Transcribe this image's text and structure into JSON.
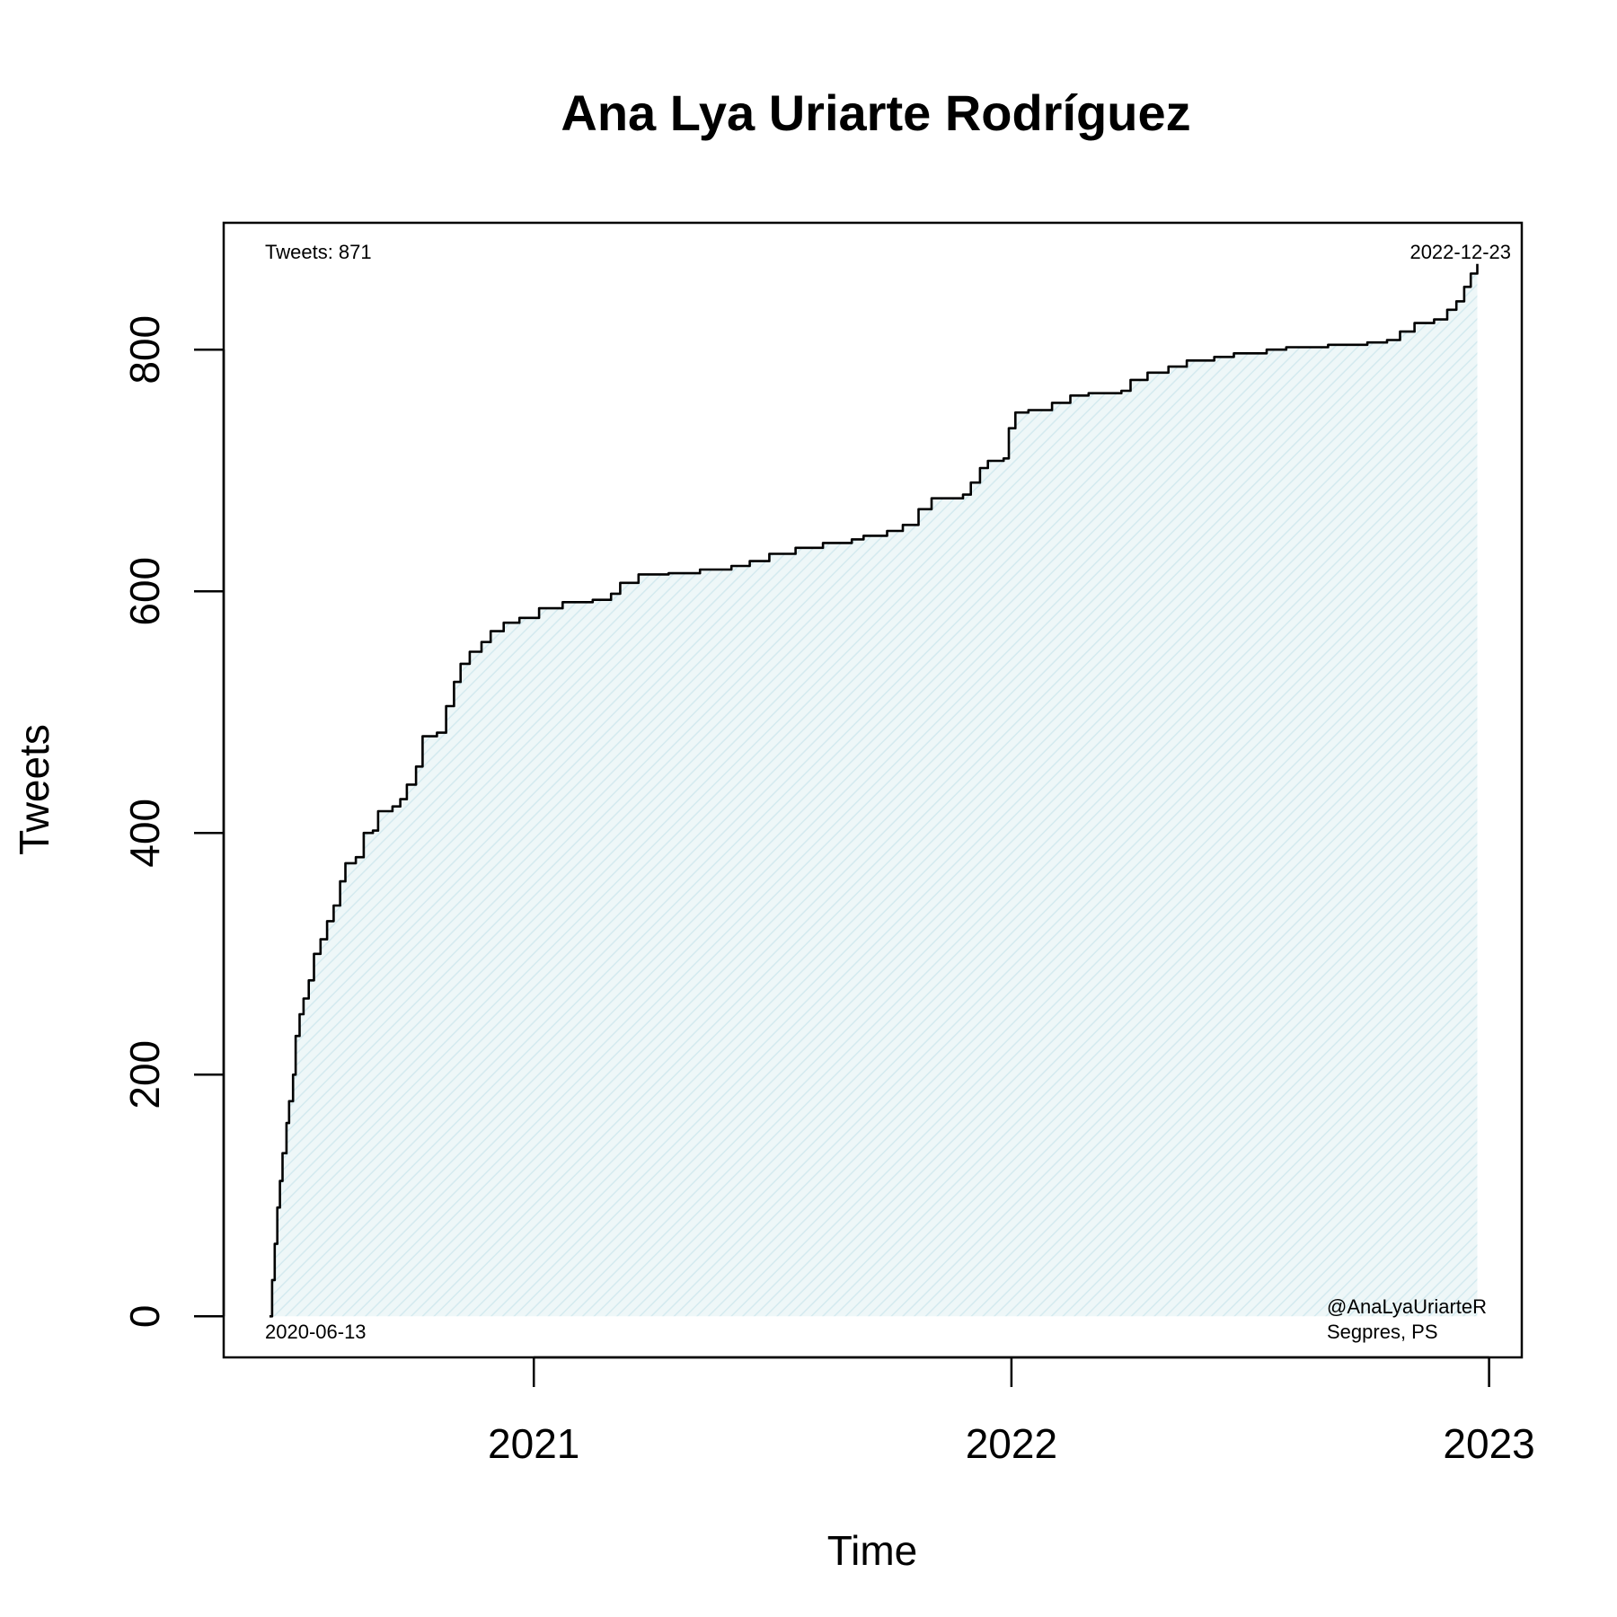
{
  "chart_data": {
    "type": "area",
    "title": "Ana Lya Uriarte Rodríguez",
    "xlabel": "Time",
    "ylabel": "Tweets",
    "xlim": [
      "2020-05-09",
      "2023-01-26"
    ],
    "ylim": [
      -34,
      905
    ],
    "x_ticks": [
      {
        "label": "2021",
        "date": "2021-01-01"
      },
      {
        "label": "2022",
        "date": "2022-01-01"
      },
      {
        "label": "2023",
        "date": "2023-01-01"
      }
    ],
    "y_ticks": [
      0,
      200,
      400,
      600,
      800
    ],
    "grid": false,
    "fill_color": "#e6f3f5",
    "line_color": "#000000",
    "annotations": {
      "count_label": "Tweets: 871",
      "end_date_label": "2022-12-23",
      "start_date_label": "2020-06-13",
      "handle": "@AnaLyaUriarteR",
      "affiliation": "Segpres, PS"
    },
    "series": [
      {
        "points": [
          [
            "2020-06-13",
            0
          ],
          [
            "2020-06-15",
            30
          ],
          [
            "2020-06-17",
            60
          ],
          [
            "2020-06-19",
            90
          ],
          [
            "2020-06-21",
            112
          ],
          [
            "2020-06-23",
            135
          ],
          [
            "2020-06-26",
            160
          ],
          [
            "2020-06-28",
            178
          ],
          [
            "2020-07-01",
            200
          ],
          [
            "2020-07-03",
            232
          ],
          [
            "2020-07-06",
            250
          ],
          [
            "2020-07-09",
            263
          ],
          [
            "2020-07-13",
            278
          ],
          [
            "2020-07-17",
            300
          ],
          [
            "2020-07-22",
            312
          ],
          [
            "2020-07-27",
            327
          ],
          [
            "2020-08-01",
            340
          ],
          [
            "2020-08-06",
            360
          ],
          [
            "2020-08-10",
            375
          ],
          [
            "2020-08-18",
            380
          ],
          [
            "2020-08-24",
            400
          ],
          [
            "2020-08-31",
            402
          ],
          [
            "2020-09-04",
            418
          ],
          [
            "2020-09-15",
            422
          ],
          [
            "2020-09-21",
            428
          ],
          [
            "2020-09-26",
            440
          ],
          [
            "2020-10-03",
            455
          ],
          [
            "2020-10-08",
            480
          ],
          [
            "2020-10-19",
            483
          ],
          [
            "2020-10-26",
            505
          ],
          [
            "2020-11-01",
            525
          ],
          [
            "2020-11-06",
            540
          ],
          [
            "2020-11-13",
            550
          ],
          [
            "2020-11-22",
            558
          ],
          [
            "2020-11-29",
            567
          ],
          [
            "2020-12-09",
            574
          ],
          [
            "2020-12-21",
            578
          ],
          [
            "2021-01-05",
            586
          ],
          [
            "2021-01-23",
            591
          ],
          [
            "2021-02-15",
            593
          ],
          [
            "2021-03-01",
            598
          ],
          [
            "2021-03-08",
            607
          ],
          [
            "2021-03-22",
            614
          ],
          [
            "2021-04-14",
            615
          ],
          [
            "2021-05-08",
            618
          ],
          [
            "2021-06-01",
            621
          ],
          [
            "2021-06-15",
            625
          ],
          [
            "2021-06-30",
            631
          ],
          [
            "2021-07-20",
            636
          ],
          [
            "2021-08-10",
            640
          ],
          [
            "2021-09-01",
            643
          ],
          [
            "2021-09-10",
            646
          ],
          [
            "2021-09-28",
            650
          ],
          [
            "2021-10-10",
            655
          ],
          [
            "2021-10-22",
            668
          ],
          [
            "2021-11-01",
            677
          ],
          [
            "2021-11-25",
            680
          ],
          [
            "2021-12-01",
            690
          ],
          [
            "2021-12-08",
            702
          ],
          [
            "2021-12-14",
            708
          ],
          [
            "2021-12-26",
            710
          ],
          [
            "2021-12-30",
            735
          ],
          [
            "2022-01-04",
            748
          ],
          [
            "2022-01-14",
            750
          ],
          [
            "2022-02-01",
            756
          ],
          [
            "2022-02-15",
            762
          ],
          [
            "2022-03-01",
            764
          ],
          [
            "2022-03-26",
            766
          ],
          [
            "2022-04-02",
            775
          ],
          [
            "2022-04-15",
            781
          ],
          [
            "2022-05-01",
            786
          ],
          [
            "2022-05-15",
            791
          ],
          [
            "2022-06-05",
            794
          ],
          [
            "2022-06-20",
            797
          ],
          [
            "2022-07-15",
            800
          ],
          [
            "2022-07-30",
            802
          ],
          [
            "2022-08-31",
            804
          ],
          [
            "2022-09-30",
            806
          ],
          [
            "2022-10-15",
            808
          ],
          [
            "2022-10-25",
            815
          ],
          [
            "2022-11-05",
            822
          ],
          [
            "2022-11-20",
            825
          ],
          [
            "2022-11-30",
            833
          ],
          [
            "2022-12-07",
            840
          ],
          [
            "2022-12-13",
            852
          ],
          [
            "2022-12-18",
            863
          ],
          [
            "2022-12-23",
            871
          ]
        ]
      }
    ]
  }
}
